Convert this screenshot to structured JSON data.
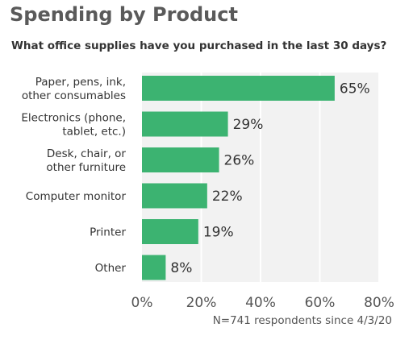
{
  "chart_data": {
    "type": "bar",
    "orientation": "horizontal",
    "title": "Spending by Product",
    "subtitle": "What office supplies have you purchased in the last 30 days?",
    "categories": [
      [
        "Paper, pens, ink,",
        "other consumables"
      ],
      [
        "Electronics (phone,",
        "tablet, etc.)"
      ],
      [
        "Desk, chair, or",
        "other furniture"
      ],
      [
        "Computer monitor"
      ],
      [
        "Printer"
      ],
      [
        "Other"
      ]
    ],
    "values": [
      65,
      29,
      26,
      22,
      19,
      8
    ],
    "value_labels": [
      "65%",
      "29%",
      "26%",
      "22%",
      "19%",
      "8%"
    ],
    "xlim": [
      0,
      80
    ],
    "xticks": [
      0,
      20,
      40,
      60,
      80
    ],
    "xtick_labels": [
      "0%",
      "20%",
      "40%",
      "60%",
      "80%"
    ],
    "bar_color": "#3cb371",
    "grid": true,
    "footnote": "N=741 respondents since 4/3/20"
  }
}
